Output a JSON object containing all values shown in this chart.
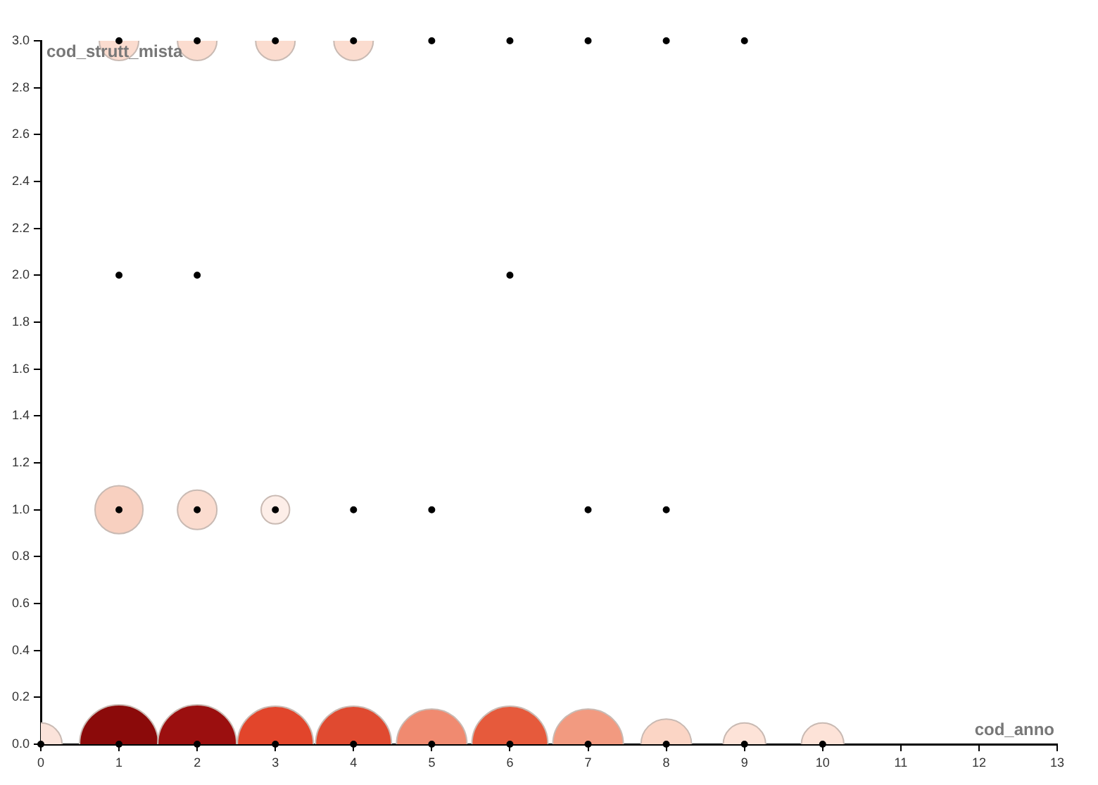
{
  "chart_data": {
    "type": "bubble",
    "xlabel": "cod_anno",
    "ylabel": "cod_strutt_mista",
    "xlim": [
      0,
      13
    ],
    "xticks": [
      0,
      1,
      2,
      3,
      4,
      5,
      6,
      7,
      8,
      9,
      10,
      11,
      12,
      13
    ],
    "ylim": [
      0,
      3
    ],
    "yticks": [
      {
        "value": 0,
        "label": "0.0"
      },
      {
        "value": 0.2,
        "label": "0.2"
      },
      {
        "value": 0.4,
        "label": "0.4"
      },
      {
        "value": 0.6,
        "label": "0.6"
      },
      {
        "value": 0.8,
        "label": "0.8"
      },
      {
        "value": 1,
        "label": "1.0"
      },
      {
        "value": 1.2,
        "label": "1.2"
      },
      {
        "value": 1.4,
        "label": "1.4"
      },
      {
        "value": 1.6,
        "label": "1.6"
      },
      {
        "value": 1.8,
        "label": "1.8"
      },
      {
        "value": 2,
        "label": "2.0"
      },
      {
        "value": 2.2,
        "label": "2.2"
      },
      {
        "value": 2.4,
        "label": "2.4"
      },
      {
        "value": 2.6,
        "label": "2.6"
      },
      {
        "value": 2.8,
        "label": "2.8"
      },
      {
        "value": 3,
        "label": "3.0"
      }
    ],
    "grid": false,
    "legend": false,
    "marker": "circle",
    "series": [
      {
        "x": [
          0,
          1,
          2,
          3,
          4,
          5,
          6,
          7,
          8,
          9,
          10,
          1,
          2,
          3,
          1,
          2,
          3,
          4
        ],
        "values": [
          0,
          0,
          0,
          0,
          0,
          0,
          0,
          0,
          0,
          0,
          0,
          1,
          1,
          1,
          3,
          3,
          3,
          3
        ],
        "sizes": [
          0.29,
          1,
          1,
          0.93,
          0.93,
          0.8,
          0.93,
          0.8,
          0.41,
          0.29,
          0.29,
          0.37,
          0.25,
          0.13,
          0.25,
          0.25,
          0.25,
          0.25
        ],
        "colors": [
          "#fbe3da",
          "#8b0a0a",
          "#9b0f0f",
          "#e2452b",
          "#e04a30",
          "#f08a70",
          "#e65a3c",
          "#f29a80",
          "#fbd5c5",
          "#fde3d8",
          "#fde3d8",
          "#f8d0c0",
          "#fbdccf",
          "#fdeee8",
          "#fbdccf",
          "#fbdccf",
          "#fbdccf",
          "#fbdccf"
        ]
      },
      {
        "type": "scatter",
        "color": "#000000",
        "x": [
          0,
          1,
          2,
          3,
          4,
          5,
          6,
          7,
          8,
          9,
          10,
          1,
          2,
          3,
          4,
          5,
          7,
          8,
          1,
          2,
          6,
          1,
          2,
          3,
          4,
          5,
          6,
          7,
          8,
          9
        ],
        "values": [
          0,
          0,
          0,
          0,
          0,
          0,
          0,
          0,
          0,
          0,
          0,
          1,
          1,
          1,
          1,
          1,
          1,
          1,
          2,
          2,
          2,
          3,
          3,
          3,
          3,
          3,
          3,
          3,
          3,
          3
        ]
      }
    ]
  }
}
